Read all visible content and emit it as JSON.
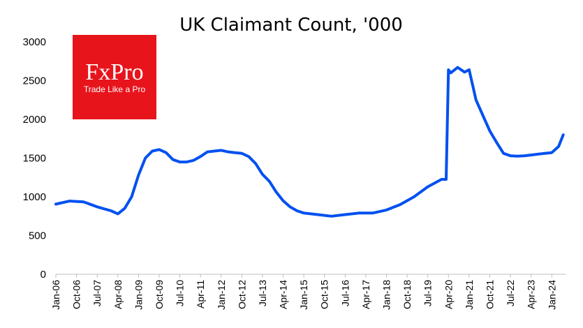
{
  "chart_data": {
    "type": "line",
    "title": "UK Claimant Count, '000",
    "xlabel": "",
    "ylabel": "",
    "ylim": [
      0,
      3000
    ],
    "yticks": [
      "0",
      "500",
      "1000",
      "1500",
      "2000",
      "2500",
      "3000"
    ],
    "grid": false,
    "legend": "none",
    "line_color": "#0050f0",
    "x_tick_labels": [
      "Jan-06",
      "Oct-06",
      "Jul-07",
      "Apr-08",
      "Jan-09",
      "Oct-09",
      "Jul-10",
      "Apr-11",
      "Jan-12",
      "Oct-12",
      "Jul-13",
      "Apr-14",
      "Jan-15",
      "Oct-15",
      "Jul-16",
      "Apr-17",
      "Jan-18",
      "Oct-18",
      "Jul-19",
      "Apr-20",
      "Jan-21",
      "Oct-21",
      "Jul-22",
      "Apr-23",
      "Jan-24"
    ],
    "series": [
      {
        "x": [
          "2006-01",
          "2006-07",
          "2007-01",
          "2007-07",
          "2008-01",
          "2008-04",
          "2008-07",
          "2008-10",
          "2009-01",
          "2009-04",
          "2009-07",
          "2009-10",
          "2010-01",
          "2010-04",
          "2010-07",
          "2010-10",
          "2011-01",
          "2011-04",
          "2011-07",
          "2011-10",
          "2012-01",
          "2012-04",
          "2012-07",
          "2012-10",
          "2013-01",
          "2013-04",
          "2013-07",
          "2013-10",
          "2014-01",
          "2014-04",
          "2014-07",
          "2014-10",
          "2015-01",
          "2015-07",
          "2016-01",
          "2016-07",
          "2017-01",
          "2017-07",
          "2018-01",
          "2018-07",
          "2019-01",
          "2019-07",
          "2020-01",
          "2020-03",
          "2020-04",
          "2020-05",
          "2020-08",
          "2020-11",
          "2021-01",
          "2021-04",
          "2021-07",
          "2021-10",
          "2022-01",
          "2022-04",
          "2022-07",
          "2022-10",
          "2023-01",
          "2023-04",
          "2023-07",
          "2023-10",
          "2024-01",
          "2024-04",
          "2024-06"
        ],
        "values": [
          905,
          945,
          935,
          870,
          820,
          780,
          850,
          1000,
          1280,
          1500,
          1590,
          1610,
          1570,
          1480,
          1450,
          1450,
          1470,
          1520,
          1580,
          1590,
          1600,
          1580,
          1570,
          1560,
          1520,
          1430,
          1290,
          1200,
          1060,
          950,
          870,
          820,
          790,
          770,
          750,
          770,
          790,
          790,
          830,
          900,
          1000,
          1130,
          1225,
          1225,
          2640,
          2600,
          2670,
          2610,
          2640,
          2250,
          2050,
          1850,
          1700,
          1560,
          1530,
          1525,
          1530,
          1540,
          1550,
          1560,
          1570,
          1650,
          1800
        ]
      }
    ]
  },
  "logo": {
    "text": "FxPro",
    "tagline": "Trade Like a Pro",
    "color": "#e8141c"
  }
}
